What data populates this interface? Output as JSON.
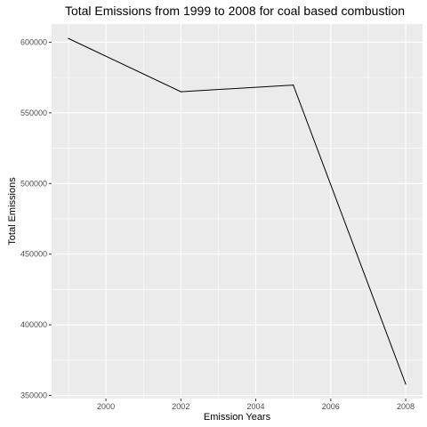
{
  "chart_data": {
    "type": "line",
    "title": "Total Emissions from 1999 to 2008 for coal based combustion",
    "xlabel": "Emission Years",
    "ylabel": "Total Emissions",
    "x": [
      1999,
      2002,
      2005,
      2008
    ],
    "values": [
      602624,
      564941,
      569655,
      358084
    ],
    "xlim": [
      1998.55,
      2008.45
    ],
    "ylim": [
      347850,
      612850
    ],
    "xticks": [
      2000,
      2002,
      2004,
      2006,
      2008
    ],
    "xticks_minor": [
      1999,
      2001,
      2003,
      2005,
      2007
    ],
    "yticks": [
      350000,
      400000,
      450000,
      500000,
      550000,
      600000
    ],
    "yticks_minor": [
      375000,
      425000,
      475000,
      525000,
      575000
    ],
    "tick_labels_x": [
      "2000",
      "2002",
      "2004",
      "2006",
      "2008"
    ],
    "tick_labels_y": [
      "350000",
      "400000",
      "450000",
      "500000",
      "550000",
      "600000"
    ],
    "line_color": "#000000",
    "panel_color": "#ebebeb",
    "grid": true,
    "legend": "none"
  }
}
